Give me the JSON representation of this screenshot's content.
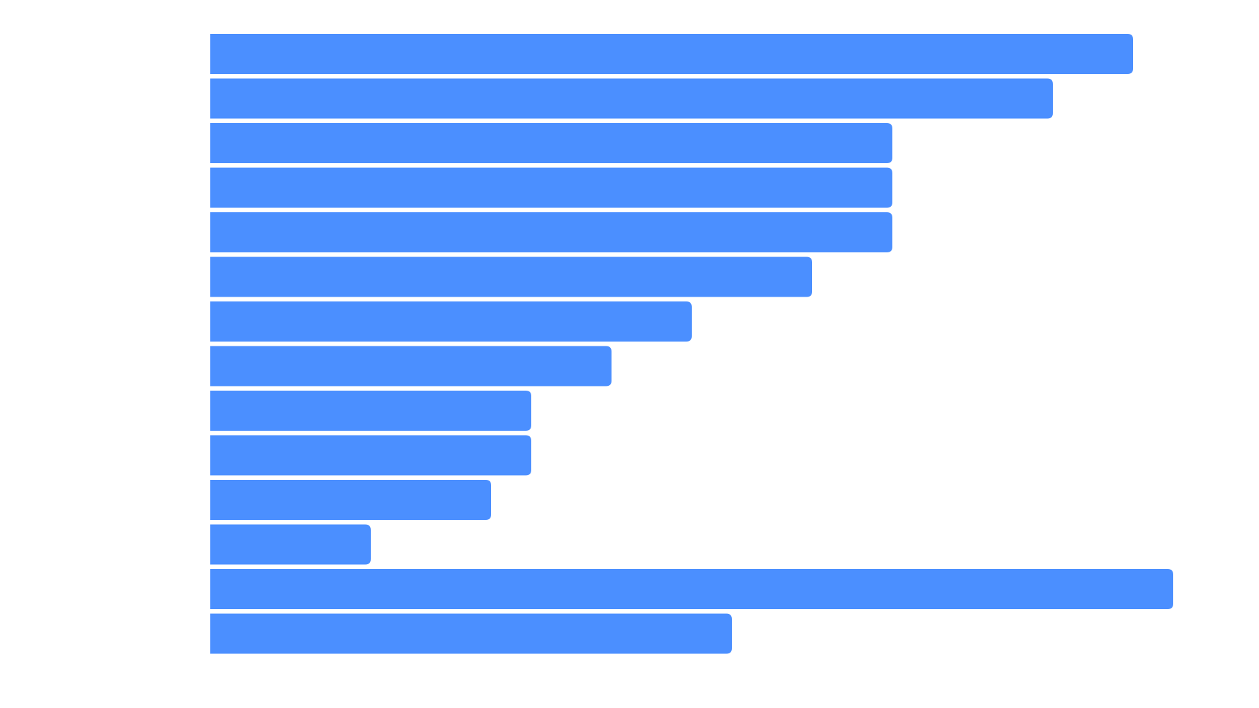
{
  "chart_data": {
    "type": "bar",
    "orientation": "horizontal",
    "values": [
      23,
      21,
      17,
      17,
      17,
      15,
      12,
      10,
      8,
      8,
      7,
      4,
      24,
      13
    ],
    "xlim": [
      0,
      24
    ],
    "grid": false,
    "legend": "none"
  },
  "colors": {
    "bar": "#4b8fff",
    "background": "#ffffff"
  }
}
